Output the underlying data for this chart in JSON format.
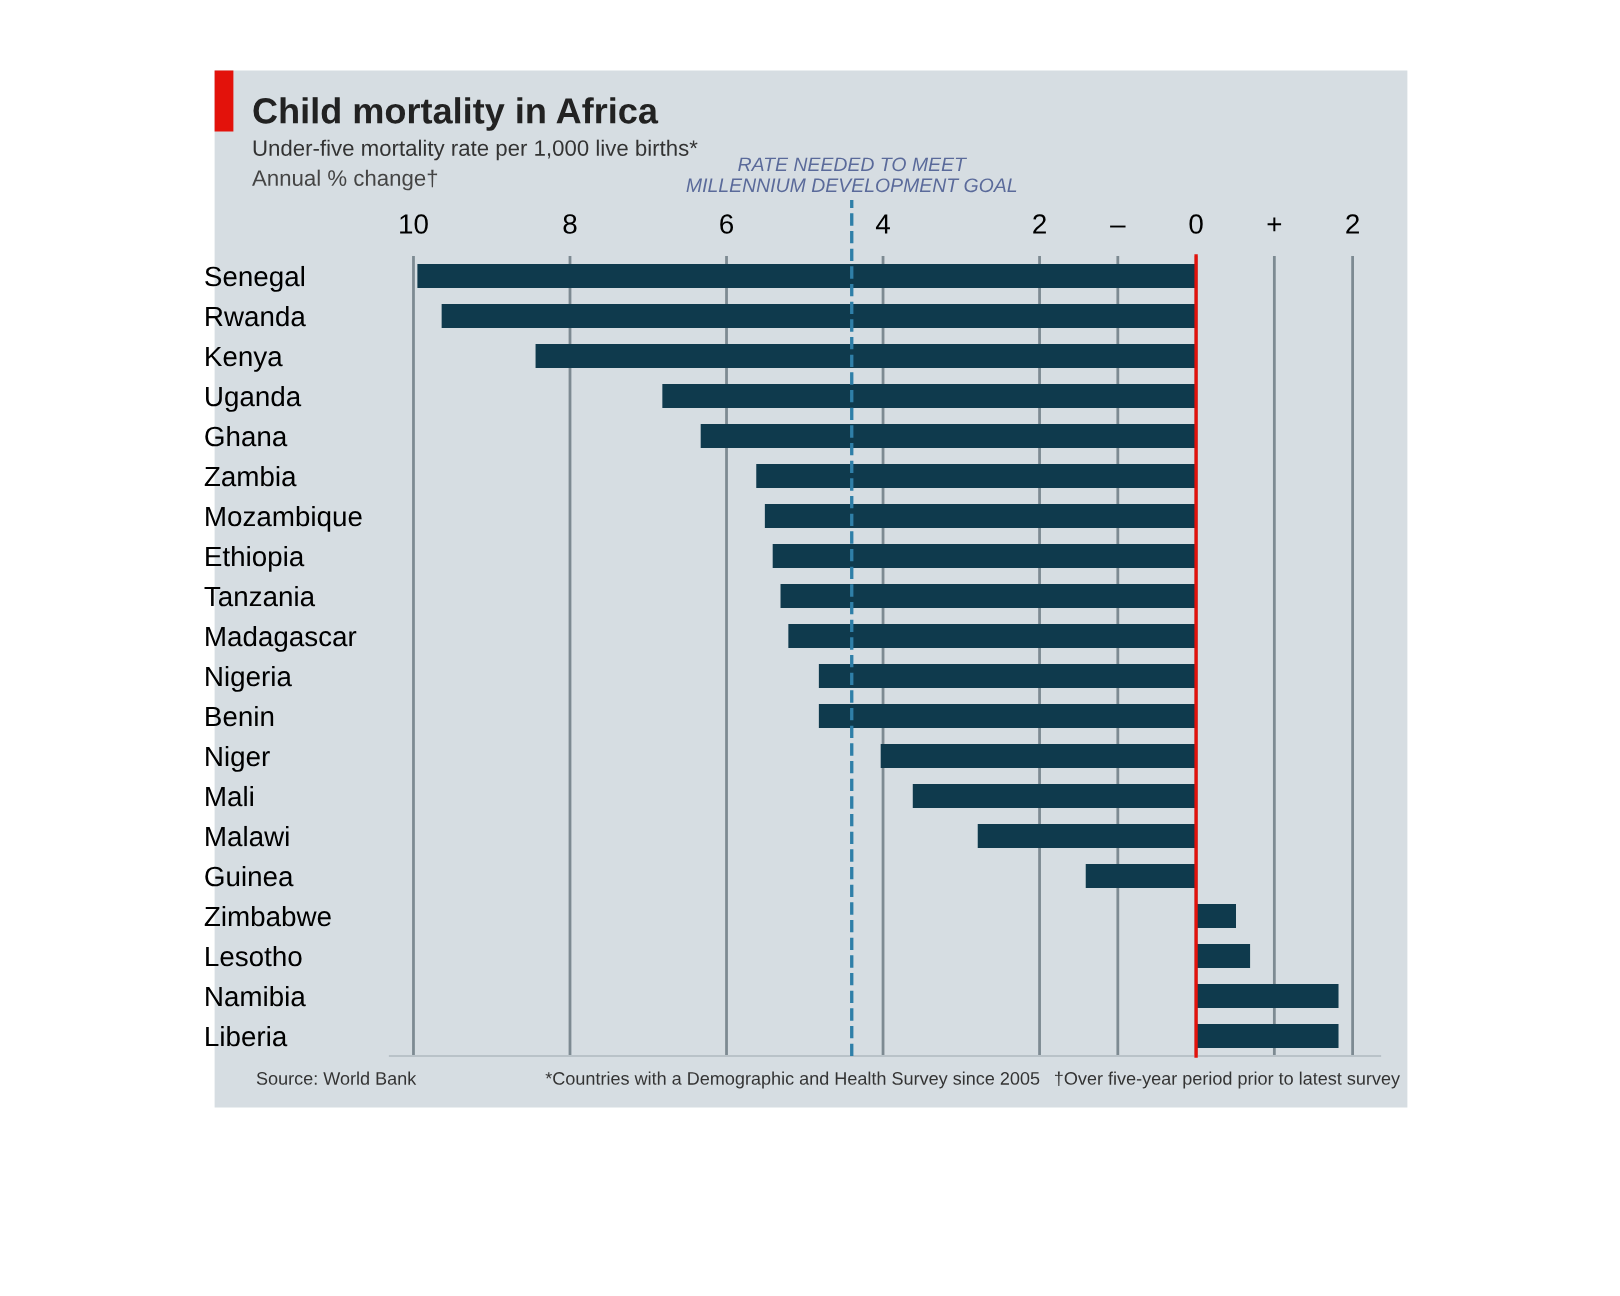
{
  "chart_data": {
    "type": "bar",
    "orientation": "horizontal",
    "title": "Child mortality in Africa",
    "subtitle": "Under-five mortality rate per 1,000 live births*",
    "xlabel": "Annual % change†",
    "categories": [
      "Senegal",
      "Rwanda",
      "Kenya",
      "Uganda",
      "Ghana",
      "Zambia",
      "Mozambique",
      "Ethiopia",
      "Tanzania",
      "Madagascar",
      "Nigeria",
      "Benin",
      "Niger",
      "Mali",
      "Malawi",
      "Guinea",
      "Zimbabwe",
      "Lesotho",
      "Namibia",
      "Liberia"
    ],
    "values": [
      -9.95,
      -9.64,
      -8.44,
      -6.82,
      -6.33,
      -5.62,
      -5.51,
      -5.41,
      -5.31,
      -5.21,
      -4.82,
      -4.82,
      -4.03,
      -3.62,
      -2.79,
      -1.41,
      0.51,
      0.69,
      1.82,
      1.82
    ],
    "color": "#0f3a4d",
    "xlim": [
      -10.3,
      2.35
    ],
    "xticks": [
      {
        "value": -10,
        "label": "10"
      },
      {
        "value": -8,
        "label": "8"
      },
      {
        "value": -6,
        "label": "6"
      },
      {
        "value": -4,
        "label": "4"
      },
      {
        "value": -2,
        "label": "2"
      },
      {
        "value": -1,
        "label": "–"
      },
      0,
      {
        "value": 1,
        "label": "+"
      },
      2
    ],
    "grid": "x",
    "ref_lines": [
      {
        "axis": "x",
        "value": 0,
        "label": null,
        "color": "#e3120b",
        "line_style": "solid"
      },
      {
        "axis": "x",
        "value": -4.4,
        "label": "RATE NEEDED TO MEET\nMILLENNIUM DEVELOPMENT GOAL",
        "color": "#2f7fa8",
        "line_style": "dashed"
      }
    ],
    "annotations": [
      "Source: World Bank",
      "*Countries with a Demographic and Health Survey since 2005",
      "†Over five-year period prior to latest survey"
    ]
  }
}
